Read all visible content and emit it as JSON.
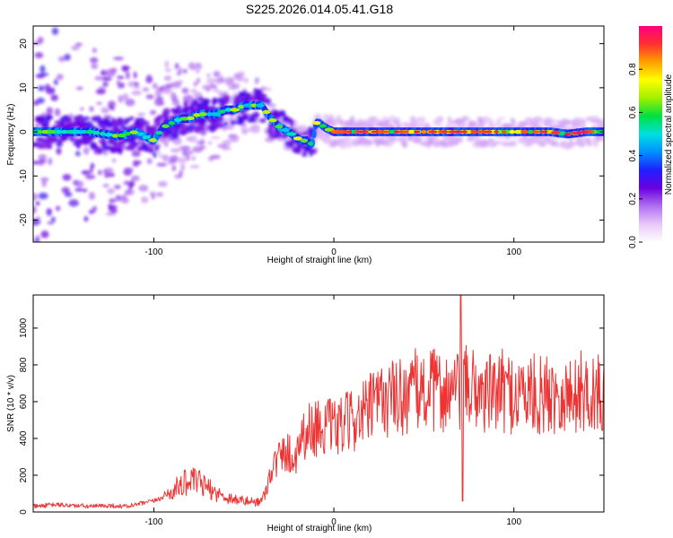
{
  "title": "S225.2026.014.05.41.G18",
  "chart_data": [
    {
      "type": "heatmap",
      "xlabel": "Height of straight line (km)",
      "ylabel": "Frequency (Hz)",
      "xlim": [
        -167,
        150
      ],
      "ylim": [
        -25,
        24
      ],
      "xticks": [
        -100,
        0,
        100
      ],
      "yticks": [
        -20,
        -10,
        0,
        10,
        20
      ],
      "ridge": {
        "x": [
          -167,
          -150,
          -135,
          -120,
          -110,
          -105,
          -100,
          -95,
          -90,
          -85,
          -80,
          -75,
          -70,
          -65,
          -60,
          -55,
          -50,
          -45,
          -40,
          -35,
          -30,
          -25,
          -22,
          -18,
          -15,
          -12,
          -10,
          -8,
          -5,
          0,
          5,
          10,
          20,
          40,
          60,
          80,
          100,
          120,
          130,
          140,
          150
        ],
        "freq": [
          0,
          0,
          0,
          -1,
          0,
          -1,
          -2,
          1,
          2,
          3,
          3,
          4,
          4,
          4,
          5,
          5,
          6,
          6,
          6,
          3,
          1,
          0,
          -1,
          -2,
          -2,
          -3,
          2,
          2,
          1,
          0,
          0,
          0,
          0,
          0,
          0,
          0,
          0,
          0,
          -0.5,
          0,
          0
        ]
      },
      "colorbar": {
        "label": "Normalized spectral amplitude",
        "range": [
          0,
          1
        ],
        "ticks": [
          "0.0",
          "0.2",
          "0.4",
          "0.6",
          "0.8"
        ],
        "tick_values": [
          0.0,
          0.2,
          0.4,
          0.6,
          0.8
        ],
        "colors": [
          "#ffffff",
          "#e8c8f8",
          "#b070f0",
          "#6a00e0",
          "#2020ff",
          "#0090ff",
          "#00e0e0",
          "#00e040",
          "#a0f000",
          "#ffff00",
          "#ffa000",
          "#ff3030",
          "#ff0080"
        ]
      }
    },
    {
      "type": "line",
      "xlabel": "Height of straight line (km)",
      "ylabel": "SNR (10 * v/v)",
      "xlim": [
        -167,
        150
      ],
      "ylim": [
        0,
        1180
      ],
      "xticks": [
        -100,
        0,
        100
      ],
      "yticks": [
        0,
        200,
        400,
        600,
        800,
        1000
      ],
      "color": "#ee3333",
      "series": [
        {
          "name": "SNR",
          "x": [
            -167,
            -155,
            -145,
            -135,
            -125,
            -115,
            -105,
            -100,
            -95,
            -90,
            -85,
            -80,
            -75,
            -70,
            -65,
            -60,
            -55,
            -50,
            -45,
            -40,
            -38,
            -35,
            -30,
            -25,
            -22,
            -20,
            -17,
            -15,
            -10,
            -5,
            0,
            5,
            10,
            15,
            20,
            25,
            30,
            35,
            40,
            45,
            50,
            55,
            60,
            65,
            70,
            75,
            80,
            85,
            90,
            95,
            100,
            105,
            110,
            115,
            120,
            125,
            130,
            135,
            140,
            145,
            150
          ],
          "y": [
            30,
            40,
            35,
            30,
            35,
            30,
            50,
            60,
            80,
            110,
            150,
            170,
            160,
            130,
            100,
            80,
            70,
            60,
            55,
            60,
            110,
            230,
            300,
            330,
            260,
            380,
            420,
            440,
            460,
            470,
            450,
            470,
            500,
            520,
            560,
            600,
            620,
            620,
            640,
            660,
            650,
            660,
            660,
            640,
            650,
            680,
            660,
            640,
            650,
            660,
            640,
            650,
            640,
            630,
            640,
            660,
            620,
            650,
            660,
            640,
            630
          ]
        }
      ]
    }
  ]
}
